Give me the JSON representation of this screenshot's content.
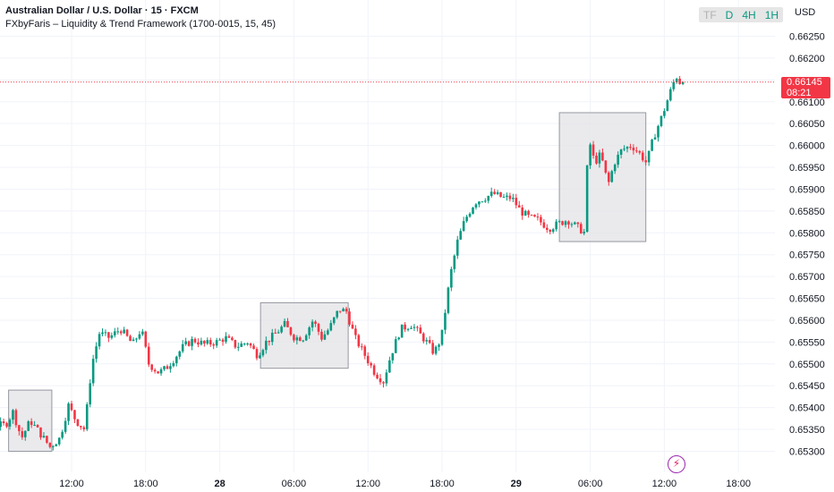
{
  "header": {
    "symbol_title": "Australian Dollar / U.S. Dollar · 15 · FXCM",
    "indicator_title": "FXbyFaris – Liquidity & Trend Framework (1700-0015, 15, 45)"
  },
  "toolbar": {
    "timeframes": [
      {
        "label": "TF",
        "active": false
      },
      {
        "label": "D",
        "active": true
      },
      {
        "label": "4H",
        "active": true
      },
      {
        "label": "1H",
        "active": true
      }
    ],
    "currency": "USD"
  },
  "price_tag": {
    "price": "0.66145",
    "countdown": "08:21"
  },
  "icons": {
    "bottom_right": "lightning-icon"
  },
  "colors": {
    "up": "#089981",
    "down": "#f23645",
    "box": "#e3e3e6",
    "last_price_line": "#f23645"
  },
  "chart_data": {
    "type": "candlestick",
    "interval": "15",
    "y_ticks": [
      "0.66250",
      "0.66200",
      "0.66150",
      "0.66100",
      "0.66050",
      "0.66000",
      "0.65950",
      "0.65900",
      "0.65850",
      "0.65800",
      "0.65750",
      "0.65700",
      "0.65650",
      "0.65600",
      "0.65550",
      "0.65500",
      "0.65450",
      "0.65400",
      "0.65350",
      "0.65300"
    ],
    "ylim": [
      0.65275,
      0.66275
    ],
    "x_ticks": [
      {
        "label": "12:00",
        "t": 12,
        "bold": false
      },
      {
        "label": "18:00",
        "t": 18,
        "bold": false
      },
      {
        "label": "28",
        "t": 24,
        "bold": true
      },
      {
        "label": "06:00",
        "t": 30,
        "bold": false
      },
      {
        "label": "12:00",
        "t": 36,
        "bold": false
      },
      {
        "label": "18:00",
        "t": 42,
        "bold": false
      },
      {
        "label": "29",
        "t": 48,
        "bold": true
      },
      {
        "label": "06:00",
        "t": 54,
        "bold": false
      },
      {
        "label": "12:00",
        "t": 60,
        "bold": false
      },
      {
        "label": "18:00",
        "t": 66,
        "bold": false
      }
    ],
    "last_price": 0.66145,
    "session_boxes": [
      {
        "t_start": 6.9,
        "t_end": 10.4,
        "low": 0.653,
        "high": 0.6544
      },
      {
        "t_start": 27.3,
        "t_end": 34.4,
        "low": 0.6549,
        "high": 0.6564
      },
      {
        "t_start": 51.5,
        "t_end": 58.5,
        "low": 0.6578,
        "high": 0.66075
      }
    ],
    "anchors": [
      [
        6.9,
        0.6536
      ],
      [
        7.5,
        0.6539
      ],
      [
        8.2,
        0.6533
      ],
      [
        8.9,
        0.6537
      ],
      [
        9.6,
        0.65345
      ],
      [
        10.5,
        0.6531
      ],
      [
        11.3,
        0.6533
      ],
      [
        12.0,
        0.65405
      ],
      [
        12.6,
        0.6537
      ],
      [
        13.3,
        0.6535
      ],
      [
        13.9,
        0.655
      ],
      [
        14.5,
        0.6557
      ],
      [
        15.3,
        0.6556
      ],
      [
        16.2,
        0.6558
      ],
      [
        17.2,
        0.65545
      ],
      [
        17.9,
        0.6558
      ],
      [
        18.5,
        0.655
      ],
      [
        19.3,
        0.6548
      ],
      [
        19.9,
        0.6549
      ],
      [
        20.5,
        0.6551
      ],
      [
        21.3,
        0.6554
      ],
      [
        22.1,
        0.65555
      ],
      [
        23.0,
        0.65545
      ],
      [
        24.0,
        0.6555
      ],
      [
        24.7,
        0.6556
      ],
      [
        25.6,
        0.6554
      ],
      [
        26.5,
        0.6555
      ],
      [
        27.3,
        0.6552
      ],
      [
        28.0,
        0.6555
      ],
      [
        28.8,
        0.6557
      ],
      [
        29.5,
        0.6559
      ],
      [
        30.3,
        0.6556
      ],
      [
        31.0,
        0.6556
      ],
      [
        31.8,
        0.656
      ],
      [
        32.5,
        0.6556
      ],
      [
        33.1,
        0.6558
      ],
      [
        33.9,
        0.65625
      ],
      [
        34.5,
        0.6562
      ],
      [
        35.2,
        0.6556
      ],
      [
        36.0,
        0.6552
      ],
      [
        36.8,
        0.6548
      ],
      [
        37.5,
        0.6546
      ],
      [
        38.1,
        0.6552
      ],
      [
        38.9,
        0.6558
      ],
      [
        39.8,
        0.6559
      ],
      [
        40.4,
        0.6557
      ],
      [
        41.0,
        0.6555
      ],
      [
        41.6,
        0.65525
      ],
      [
        42.2,
        0.6556
      ],
      [
        42.9,
        0.657
      ],
      [
        43.5,
        0.6578
      ],
      [
        44.1,
        0.6583
      ],
      [
        44.9,
        0.6587
      ],
      [
        45.7,
        0.6588
      ],
      [
        46.4,
        0.6589
      ],
      [
        47.2,
        0.6588
      ],
      [
        47.9,
        0.6588
      ],
      [
        48.6,
        0.6585
      ],
      [
        49.3,
        0.65835
      ],
      [
        50.0,
        0.6583
      ],
      [
        50.9,
        0.6581
      ],
      [
        51.6,
        0.6582
      ],
      [
        52.4,
        0.6583
      ],
      [
        53.1,
        0.65815
      ],
      [
        53.8,
        0.658
      ],
      [
        54.1,
        0.6602
      ],
      [
        54.6,
        0.6596
      ],
      [
        55.1,
        0.6598
      ],
      [
        55.7,
        0.6591
      ],
      [
        56.2,
        0.6596
      ],
      [
        56.8,
        0.6599
      ],
      [
        57.6,
        0.66
      ],
      [
        58.3,
        0.6598
      ],
      [
        58.8,
        0.6596
      ],
      [
        59.4,
        0.6602
      ],
      [
        60.1,
        0.6607
      ],
      [
        60.7,
        0.6612
      ],
      [
        61.2,
        0.6616
      ],
      [
        61.5,
        0.66145
      ]
    ]
  }
}
